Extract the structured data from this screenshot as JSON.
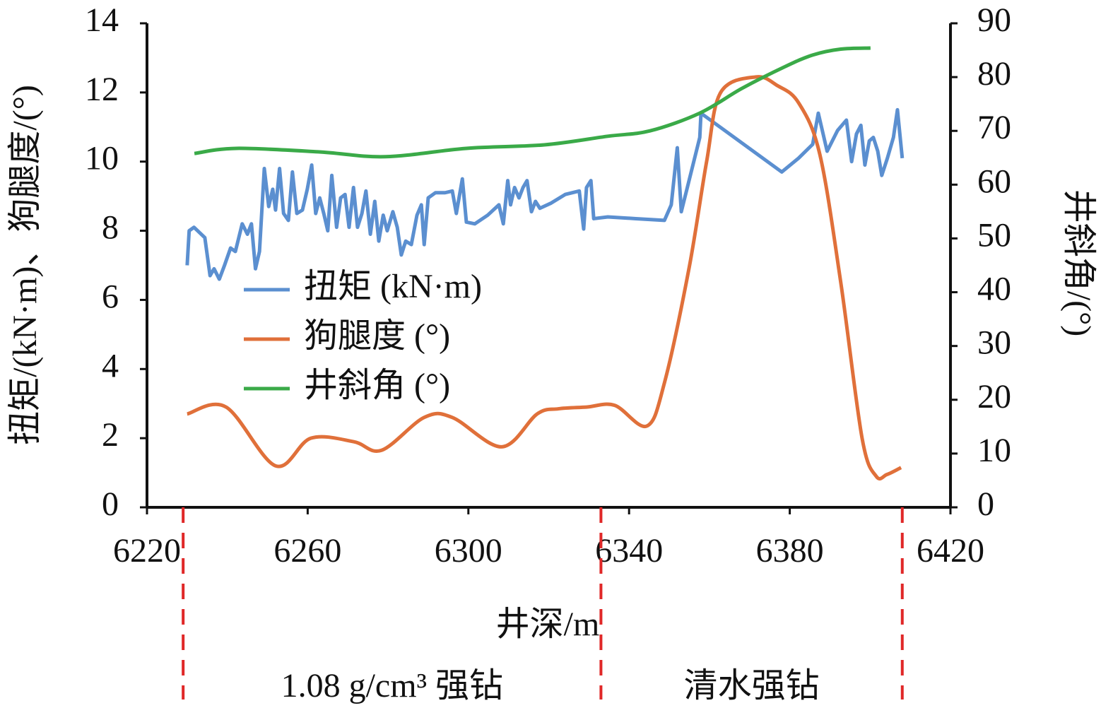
{
  "chart_data": {
    "type": "line",
    "x_label": "井深/m",
    "y_label": "扭矩/(kN·m)、狗腿度/(°)",
    "y2_label": "井斜角/(°)",
    "xlim": [
      6220,
      6420
    ],
    "xticks": [
      6220,
      6260,
      6300,
      6340,
      6380,
      6420
    ],
    "ylim": [
      0,
      14
    ],
    "yticks": [
      0,
      2,
      4,
      6,
      8,
      10,
      12,
      14
    ],
    "y2lim": [
      0,
      90
    ],
    "y2ticks": [
      0,
      10,
      20,
      30,
      40,
      50,
      60,
      70,
      80,
      90
    ],
    "legend": "center-left",
    "series": [
      {
        "name": "扭矩 (kN·m)",
        "color": "#5b8fd0",
        "smooth": false,
        "x": [
          6230,
          6230.5,
          6231.7,
          6234.4,
          6235.7,
          6236.7,
          6238,
          6239.3,
          6240.8,
          6242,
          6243.7,
          6245,
          6246,
          6247,
          6248,
          6249.2,
          6250.3,
          6251.3,
          6252,
          6253,
          6254,
          6255.2,
          6256.2,
          6257.3,
          6258.7,
          6259.9,
          6261,
          6262,
          6263,
          6264,
          6265,
          6266,
          6267.2,
          6268.2,
          6269.3,
          6270.3,
          6271.4,
          6272.4,
          6273.5,
          6274.5,
          6275.6,
          6276.7,
          6277.7,
          6278.8,
          6279.8,
          6281.2,
          6282.3,
          6283.3,
          6284.4,
          6285.8,
          6287.2,
          6288.3,
          6289,
          6290,
          6291.8,
          6294.2,
          6296,
          6297,
          6298.5,
          6299.5,
          6301.6,
          6304.8,
          6307.6,
          6308.7,
          6309.8,
          6310.5,
          6311.5,
          6312.6,
          6313.6,
          6314.6,
          6315.7,
          6316.7,
          6317.8,
          6320.6,
          6324.1,
          6327.6,
          6328.7,
          6329.4,
          6330.5,
          6331.2,
          6334.7,
          6341.7,
          6348.8,
          6350.5,
          6352,
          6353,
          6357.6,
          6357.9,
          6378,
          6382.2,
          6385.7,
          6387.1,
          6389.3,
          6391.9,
          6394.1,
          6395.4,
          6396.6,
          6397.7,
          6398.7,
          6399.8,
          6400.8,
          6401.9,
          6402.9,
          6404.3,
          6405.8,
          6406.8,
          6408
        ],
        "values": [
          7.0,
          8.0,
          8.1,
          7.8,
          6.7,
          6.9,
          6.6,
          7.0,
          7.5,
          7.4,
          8.2,
          7.9,
          8.2,
          6.9,
          7.4,
          9.8,
          8.7,
          9.2,
          8.6,
          9.8,
          8.5,
          8.3,
          9.7,
          8.5,
          8.6,
          9.2,
          9.9,
          8.5,
          8.95,
          8.5,
          8.0,
          9.6,
          8.1,
          8.95,
          9.05,
          8.1,
          9.25,
          8.1,
          8.5,
          9.15,
          7.9,
          8.85,
          7.7,
          8.45,
          8.0,
          8.55,
          8.1,
          7.3,
          7.7,
          7.6,
          8.45,
          8.75,
          7.6,
          8.95,
          9.1,
          9.1,
          9.15,
          8.5,
          9.5,
          8.25,
          8.2,
          8.45,
          8.75,
          8.2,
          9.45,
          8.75,
          9.25,
          8.95,
          9.25,
          9.45,
          8.55,
          8.85,
          8.65,
          8.8,
          9.05,
          9.15,
          8.05,
          9.25,
          9.45,
          8.35,
          8.4,
          8.35,
          8.3,
          8.75,
          10.4,
          8.55,
          10.7,
          11.4,
          9.7,
          10.1,
          10.5,
          11.4,
          10.3,
          10.9,
          11.2,
          10.0,
          10.8,
          11.05,
          9.9,
          10.6,
          10.7,
          10.3,
          9.6,
          10.1,
          10.7,
          11.5,
          10.1
        ]
      },
      {
        "name": "狗腿度 (°)",
        "color": "#e0703a",
        "smooth": true,
        "x": [
          6230,
          6239.7,
          6252,
          6260.8,
          6271.4,
          6278.4,
          6289,
          6296,
          6308.3,
          6317.1,
          6322.4,
          6329.4,
          6336.4,
          6344.4,
          6348.8,
          6354.9,
          6359.3,
          6362.8,
          6371.6,
          6376.9,
          6382.2,
          6387.5,
          6392.7,
          6398,
          6401.5,
          6404.2,
          6407.7
        ],
        "values": [
          2.7,
          2.9,
          1.2,
          2.0,
          1.9,
          1.65,
          2.6,
          2.6,
          1.75,
          2.7,
          2.85,
          2.9,
          2.95,
          2.35,
          3.6,
          6.9,
          10.0,
          12.0,
          12.45,
          12.2,
          11.7,
          10.2,
          6.5,
          2.0,
          0.9,
          0.95,
          1.15
        ]
      },
      {
        "name": "井斜角 (°)",
        "color": "#3aaa48",
        "smooth": true,
        "axis": "y2",
        "x": [
          6231.8,
          6242.3,
          6262.6,
          6279.3,
          6299.5,
          6318.9,
          6334.7,
          6345.2,
          6357.6,
          6368.1,
          6378.7,
          6385.7,
          6392.7,
          6400.1
        ],
        "values": [
          65.8,
          66.75,
          66.1,
          65.2,
          66.75,
          67.4,
          69.0,
          70.0,
          73.3,
          77.9,
          81.9,
          84.1,
          85.2,
          85.4
        ]
      }
    ],
    "dividers": [
      6229,
      6333,
      6408
    ],
    "dividers_color": "#e02828",
    "segment_labels": [
      "1.08 g/cm³ 强钻",
      "清水强钻"
    ]
  }
}
